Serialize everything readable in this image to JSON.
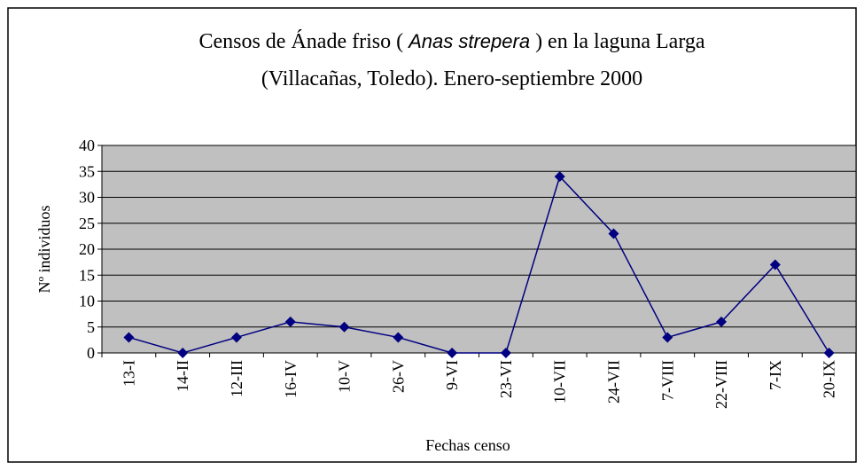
{
  "chart_data": {
    "type": "line",
    "title": [
      "Censos de Ánade friso ( ",
      "Anas strepera",
      " ) en la laguna Larga",
      "(Villacañas, Toledo). Enero-septiembre 2000"
    ],
    "x_label": "Fechas censo",
    "y_label": "Nº individuos",
    "categories": [
      "13-I",
      "14-II",
      "12-III",
      "16-IV",
      "10-V",
      "26-V",
      "9-VI",
      "23-VI",
      "10-VII",
      "24-VII",
      "7-VIII",
      "22-VIII",
      "7-IX",
      "20-IX"
    ],
    "values": [
      3,
      0,
      3,
      6,
      5,
      3,
      0,
      0,
      34,
      23,
      3,
      6,
      17,
      0
    ],
    "color": "#000080",
    "background": "#c0c0c0",
    "ylim": [
      0,
      40
    ],
    "yticks": [
      0,
      5,
      10,
      15,
      20,
      25,
      30,
      35,
      40
    ],
    "grid": true
  }
}
